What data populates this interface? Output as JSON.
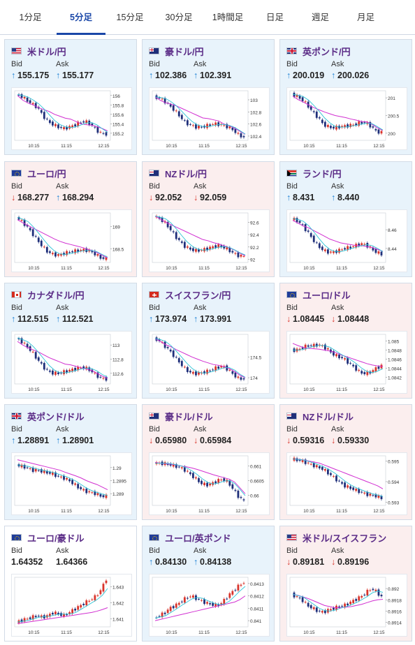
{
  "tabs": [
    {
      "label": "1分足",
      "active": false
    },
    {
      "label": "5分足",
      "active": true
    },
    {
      "label": "15分足",
      "active": false
    },
    {
      "label": "30分足",
      "active": false
    },
    {
      "label": "1時間足",
      "active": false
    },
    {
      "label": "日足",
      "active": false
    },
    {
      "label": "週足",
      "active": false
    },
    {
      "label": "月足",
      "active": false
    }
  ],
  "bid_label": "Bid",
  "ask_label": "Ask",
  "colors": {
    "up_bg": "#e8f3fb",
    "down_bg": "#fbeeee",
    "up_arrow": "#1a7fd4",
    "down_arrow": "#d9342b",
    "pair_name": "#5b2c87",
    "active_tab": "#1a47a8",
    "candle_up": "#d9342b",
    "candle_down": "#1f2f7a",
    "ma_short": "#2ec4d6",
    "ma_long": "#d12fd1"
  },
  "cards": [
    {
      "flag": "us-flag-icon",
      "pair": "米ドル/円",
      "trend": "up",
      "bid_dir": "up",
      "bid": "155.175",
      "ask_dir": "up",
      "ask": "155.177",
      "chart": {
        "yticks": [
          "156",
          "155.8",
          "155.6",
          "155.4",
          "155.2"
        ],
        "yvals": [
          156,
          155.8,
          155.6,
          155.4,
          155.2
        ],
        "xticks": [
          "10:15",
          "11:15",
          "12:15"
        ],
        "ylim": [
          155.05,
          156.1
        ],
        "path": [
          156.02,
          155.98,
          155.9,
          155.82,
          155.75,
          155.58,
          155.45,
          155.38,
          155.33,
          155.3,
          155.33,
          155.37,
          155.43,
          155.45,
          155.4,
          155.28,
          155.2,
          155.18
        ],
        "ma_long": [
          156.0,
          155.9,
          155.84,
          155.8,
          155.74,
          155.7,
          155.66,
          155.6,
          155.56,
          155.52,
          155.5,
          155.45,
          155.4,
          155.38,
          155.37,
          155.34,
          155.3,
          155.25
        ]
      }
    },
    {
      "flag": "au-flag-icon",
      "pair": "豪ドル/円",
      "trend": "up",
      "bid_dir": "up",
      "bid": "102.386",
      "ask_dir": "up",
      "ask": "102.391",
      "chart": {
        "yticks": [
          "103",
          "102.8",
          "102.6",
          "102.4"
        ],
        "yvals": [
          103,
          102.8,
          102.6,
          102.4
        ],
        "xticks": [
          "10:15",
          "11:15",
          "12:15"
        ],
        "ylim": [
          102.33,
          103.15
        ],
        "path": [
          103.05,
          103.03,
          102.98,
          102.9,
          102.82,
          102.72,
          102.62,
          102.58,
          102.55,
          102.55,
          102.57,
          102.6,
          102.6,
          102.58,
          102.55,
          102.5,
          102.42,
          102.38
        ],
        "ma_long": [
          103.05,
          102.99,
          102.95,
          102.93,
          102.9,
          102.86,
          102.82,
          102.78,
          102.74,
          102.7,
          102.69,
          102.67,
          102.65,
          102.6,
          102.57,
          102.53,
          102.48,
          102.43
        ]
      }
    },
    {
      "flag": "uk-flag-icon",
      "pair": "英ポンド/円",
      "trend": "up",
      "bid_dir": "up",
      "bid": "200.019",
      "ask_dir": "up",
      "ask": "200.026",
      "chart": {
        "yticks": [
          "201",
          "200.5",
          "200"
        ],
        "yvals": [
          201,
          200.5,
          200
        ],
        "xticks": [
          "10:15",
          "11:15",
          "12:15"
        ],
        "ylim": [
          199.8,
          201.2
        ],
        "path": [
          201.1,
          201.05,
          200.95,
          200.8,
          200.6,
          200.45,
          200.25,
          200.18,
          200.15,
          200.18,
          200.2,
          200.22,
          200.25,
          200.3,
          200.3,
          200.2,
          200.05,
          200.02
        ],
        "ma_long": [
          201.05,
          200.95,
          200.88,
          200.8,
          200.72,
          200.66,
          200.6,
          200.55,
          200.5,
          200.47,
          200.44,
          200.4,
          200.37,
          200.33,
          200.32,
          200.25,
          200.15,
          200.08
        ]
      }
    },
    {
      "flag": "eu-flag-icon",
      "pair": "ユーロ/円",
      "trend": "down",
      "bid_dir": "down",
      "bid": "168.277",
      "ask_dir": "up",
      "ask": "168.294",
      "chart": {
        "yticks": [
          "169",
          "168.5"
        ],
        "yvals": [
          169,
          168.5
        ],
        "xticks": [
          "10:15",
          "11:15",
          "12:15"
        ],
        "ylim": [
          168.2,
          169.3
        ],
        "path": [
          169.2,
          169.12,
          169.0,
          168.85,
          168.7,
          168.55,
          168.43,
          168.38,
          168.36,
          168.4,
          168.43,
          168.45,
          168.47,
          168.48,
          168.45,
          168.38,
          168.3,
          168.28
        ],
        "ma_long": [
          169.15,
          169.08,
          169.02,
          168.96,
          168.9,
          168.84,
          168.78,
          168.72,
          168.67,
          168.63,
          168.6,
          168.57,
          168.54,
          168.5,
          168.47,
          168.42,
          168.36,
          168.3
        ]
      }
    },
    {
      "flag": "nz-flag-icon",
      "pair": "NZドル/円",
      "trend": "down",
      "bid_dir": "down",
      "bid": "92.052",
      "ask_dir": "down",
      "ask": "92.059",
      "chart": {
        "yticks": [
          "92.6",
          "92.4",
          "92.2",
          "92"
        ],
        "yvals": [
          92.6,
          92.4,
          92.2,
          92
        ],
        "xticks": [
          "10:15",
          "11:15",
          "12:15"
        ],
        "ylim": [
          91.95,
          92.75
        ],
        "path": [
          92.7,
          92.66,
          92.6,
          92.5,
          92.38,
          92.28,
          92.2,
          92.16,
          92.14,
          92.15,
          92.17,
          92.2,
          92.22,
          92.2,
          92.16,
          92.1,
          92.06,
          92.05
        ],
        "ma_long": [
          92.7,
          92.65,
          92.6,
          92.56,
          92.52,
          92.48,
          92.44,
          92.4,
          92.36,
          92.32,
          92.3,
          92.27,
          92.25,
          92.22,
          92.19,
          92.15,
          92.1,
          92.06
        ]
      }
    },
    {
      "flag": "za-flag-icon",
      "pair": "ランド/円",
      "trend": "up",
      "bid_dir": "up",
      "bid": "8.431",
      "ask_dir": "up",
      "ask": "8.440",
      "chart": {
        "yticks": [
          "8.46",
          "8.44"
        ],
        "yvals": [
          8.46,
          8.44
        ],
        "xticks": [
          "10:15",
          "11:15",
          "12:15"
        ],
        "ylim": [
          8.425,
          8.478
        ],
        "path": [
          8.472,
          8.47,
          8.465,
          8.458,
          8.45,
          8.443,
          8.438,
          8.436,
          8.436,
          8.438,
          8.44,
          8.441,
          8.443,
          8.445,
          8.444,
          8.44,
          8.436,
          8.434
        ],
        "ma_long": [
          8.47,
          8.467,
          8.464,
          8.462,
          8.459,
          8.456,
          8.453,
          8.45,
          8.448,
          8.446,
          8.445,
          8.444,
          8.443,
          8.443,
          8.442,
          8.441,
          8.439,
          8.437
        ]
      }
    },
    {
      "flag": "ca-flag-icon",
      "pair": "カナダドル/円",
      "trend": "up",
      "bid_dir": "up",
      "bid": "112.515",
      "ask_dir": "up",
      "ask": "112.521",
      "chart": {
        "yticks": [
          "113",
          "112.8",
          "112.6"
        ],
        "yvals": [
          113,
          112.8,
          112.6
        ],
        "xticks": [
          "10:15",
          "11:15",
          "12:15"
        ],
        "ylim": [
          112.45,
          113.15
        ],
        "path": [
          113.1,
          113.05,
          112.98,
          112.9,
          112.8,
          112.7,
          112.63,
          112.6,
          112.6,
          112.62,
          112.64,
          112.66,
          112.68,
          112.68,
          112.64,
          112.58,
          112.53,
          112.52
        ],
        "ma_long": [
          113.05,
          113.0,
          112.96,
          112.93,
          112.9,
          112.86,
          112.82,
          112.79,
          112.76,
          112.73,
          112.72,
          112.7,
          112.68,
          112.66,
          112.64,
          112.6,
          112.56,
          112.53
        ]
      }
    },
    {
      "flag": "ch-flag-icon",
      "pair": "スイスフラン/円",
      "trend": "up",
      "bid_dir": "up",
      "bid": "173.974",
      "ask_dir": "up",
      "ask": "173.991",
      "chart": {
        "yticks": [
          "174.5",
          "174"
        ],
        "yvals": [
          174.5,
          174
        ],
        "xticks": [
          "10:15",
          "11:15",
          "12:15"
        ],
        "ylim": [
          173.85,
          175.05
        ],
        "path": [
          174.95,
          174.9,
          174.78,
          174.65,
          174.5,
          174.35,
          174.2,
          174.12,
          174.1,
          174.12,
          174.15,
          174.2,
          174.25,
          174.28,
          174.2,
          174.08,
          173.98,
          173.97
        ],
        "ma_long": [
          174.95,
          174.88,
          174.8,
          174.75,
          174.68,
          174.62,
          174.56,
          174.5,
          174.45,
          174.4,
          174.36,
          174.32,
          174.3,
          174.27,
          174.22,
          174.15,
          174.06,
          174.0
        ]
      }
    },
    {
      "flag": "eu-flag-icon",
      "pair": "ユーロ/ドル",
      "trend": "down",
      "bid_dir": "down",
      "bid": "1.08445",
      "ask_dir": "down",
      "ask": "1.08448",
      "chart": {
        "yticks": [
          "1.085",
          "1.0848",
          "1.0846",
          "1.0844",
          "1.0842"
        ],
        "yvals": [
          1.085,
          1.0848,
          1.0846,
          1.0844,
          1.0842
        ],
        "xticks": [
          "10:15",
          "11:15",
          "12:15"
        ],
        "ylim": [
          1.08405,
          1.08515
        ],
        "path": [
          1.0848,
          1.0848,
          1.08485,
          1.0849,
          1.0849,
          1.08492,
          1.08488,
          1.0848,
          1.0847,
          1.08465,
          1.0846,
          1.0845,
          1.0844,
          1.0843,
          1.08428,
          1.08432,
          1.0844,
          1.08445
        ],
        "ma_long": [
          1.08495,
          1.0849,
          1.08486,
          1.08484,
          1.08483,
          1.08482,
          1.0848,
          1.08478,
          1.08475,
          1.0847,
          1.08466,
          1.08462,
          1.08458,
          1.08454,
          1.0845,
          1.08447,
          1.08445,
          1.08444
        ]
      }
    },
    {
      "flag": "uk-flag-icon",
      "pair": "英ポンド/ドル",
      "trend": "up",
      "bid_dir": "up",
      "bid": "1.28891",
      "ask_dir": "up",
      "ask": "1.28901",
      "chart": {
        "yticks": [
          "1.29",
          "1.2895",
          "1.289"
        ],
        "yvals": [
          1.29,
          1.2895,
          1.289
        ],
        "xticks": [
          "10:15",
          "11:15",
          "12:15"
        ],
        "ylim": [
          1.28855,
          1.29045
        ],
        "path": [
          1.2901,
          1.29005,
          1.29,
          1.2899,
          1.2899,
          1.28985,
          1.2898,
          1.28975,
          1.28965,
          1.2896,
          1.2895,
          1.28935,
          1.2892,
          1.2891,
          1.28905,
          1.289,
          1.2889,
          1.2889
        ],
        "ma_long": [
          1.2903,
          1.29025,
          1.2902,
          1.29015,
          1.2901,
          1.29005,
          1.29,
          1.28995,
          1.2899,
          1.28982,
          1.28975,
          1.28968,
          1.2896,
          1.2895,
          1.28942,
          1.28935,
          1.28925,
          1.28915
        ]
      }
    },
    {
      "flag": "au-flag-icon",
      "pair": "豪ドル/ドル",
      "trend": "down",
      "bid_dir": "down",
      "bid": "0.65980",
      "ask_dir": "down",
      "ask": "0.65984",
      "chart": {
        "yticks": [
          "0.661",
          "0.6605",
          "0.66"
        ],
        "yvals": [
          0.661,
          0.6605,
          0.66
        ],
        "xticks": [
          "10:15",
          "11:15",
          "12:15"
        ],
        "ylim": [
          0.65965,
          0.66135
        ],
        "path": [
          0.6611,
          0.6611,
          0.66108,
          0.66105,
          0.661,
          0.66095,
          0.66085,
          0.6607,
          0.66055,
          0.6604,
          0.66035,
          0.6604,
          0.6605,
          0.66055,
          0.66045,
          0.6602,
          0.65995,
          0.6598
        ],
        "ma_long": [
          0.66112,
          0.6611,
          0.66108,
          0.66106,
          0.66104,
          0.661,
          0.66097,
          0.66093,
          0.66088,
          0.66082,
          0.66076,
          0.6607,
          0.66065,
          0.6606,
          0.66055,
          0.66045,
          0.66025,
          0.66005
        ]
      }
    },
    {
      "flag": "nz-flag-icon",
      "pair": "NZドル/ドル",
      "trend": "down",
      "bid_dir": "down",
      "bid": "0.59316",
      "ask_dir": "down",
      "ask": "0.59330",
      "chart": {
        "yticks": [
          "0.595",
          "0.594",
          "0.593"
        ],
        "yvals": [
          0.595,
          0.594,
          0.593
        ],
        "xticks": [
          "10:15",
          "11:15",
          "12:15"
        ],
        "ylim": [
          0.59285,
          0.59525
        ],
        "path": [
          0.5951,
          0.59505,
          0.595,
          0.5949,
          0.5948,
          0.5947,
          0.5946,
          0.5944,
          0.5942,
          0.594,
          0.5938,
          0.5937,
          0.5936,
          0.5935,
          0.5934,
          0.59335,
          0.5933,
          0.5932
        ],
        "ma_long": [
          0.5951,
          0.59508,
          0.59505,
          0.595,
          0.59495,
          0.5949,
          0.5948,
          0.5947,
          0.5946,
          0.5945,
          0.5944,
          0.5943,
          0.5942,
          0.5941,
          0.594,
          0.5939,
          0.5938,
          0.59365
        ]
      }
    },
    {
      "flag": "eu-flag-icon",
      "pair": "ユーロ/豪ドル",
      "trend": "flat",
      "bid_dir": "",
      "bid": "1.64352",
      "ask_dir": "",
      "ask": "1.64366",
      "chart": {
        "yticks": [
          "1.643",
          "1.642",
          "1.641"
        ],
        "yvals": [
          1.643,
          1.642,
          1.641
        ],
        "xticks": [
          "10:15",
          "11:15",
          "12:15"
        ],
        "ylim": [
          1.6405,
          1.6436
        ],
        "path": [
          1.6408,
          1.6409,
          1.641,
          1.6411,
          1.6412,
          1.6411,
          1.6412,
          1.6414,
          1.6413,
          1.6412,
          1.6414,
          1.6416,
          1.6418,
          1.642,
          1.6422,
          1.6424,
          1.6428,
          1.6435
        ],
        "ma_long": [
          1.6407,
          1.64075,
          1.6408,
          1.64085,
          1.6409,
          1.64095,
          1.641,
          1.64105,
          1.6411,
          1.64115,
          1.6412,
          1.64125,
          1.6413,
          1.64135,
          1.6414,
          1.64148,
          1.64158,
          1.6417
        ]
      }
    },
    {
      "flag": "eu-flag-icon",
      "pair": "ユーロ/英ポンド",
      "trend": "up",
      "bid_dir": "up",
      "bid": "0.84130",
      "ask_dir": "up",
      "ask": "0.84138",
      "chart": {
        "yticks": [
          "0.8413",
          "0.8412",
          "0.8411",
          "0.841"
        ],
        "yvals": [
          0.8413,
          0.8412,
          0.8411,
          0.841
        ],
        "xticks": [
          "10:15",
          "11:15",
          "12:15"
        ],
        "ylim": [
          0.84095,
          0.84135
        ],
        "path": [
          0.84102,
          0.84104,
          0.84106,
          0.8411,
          0.84112,
          0.84115,
          0.84118,
          0.8412,
          0.84118,
          0.84116,
          0.84114,
          0.84113,
          0.84112,
          0.84115,
          0.8412,
          0.84124,
          0.84128,
          0.84131
        ],
        "ma_long": [
          0.841,
          0.84101,
          0.84102,
          0.84103,
          0.84104,
          0.84105,
          0.84106,
          0.84107,
          0.84108,
          0.84109,
          0.8411,
          0.84111,
          0.84112,
          0.84113,
          0.84114,
          0.84115,
          0.84117,
          0.8412
        ]
      }
    },
    {
      "flag": "us-flag-icon",
      "pair": "米ドル/スイスフラン",
      "trend": "down",
      "bid_dir": "down",
      "bid": "0.89181",
      "ask_dir": "down",
      "ask": "0.89196",
      "chart": {
        "yticks": [
          "0.892",
          "0.8918",
          "0.8916",
          "0.8914"
        ],
        "yvals": [
          0.892,
          0.8918,
          0.8916,
          0.8914
        ],
        "xticks": [
          "10:15",
          "11:15",
          "12:15"
        ],
        "ylim": [
          0.89132,
          0.8922
        ],
        "path": [
          0.8919,
          0.89185,
          0.8918,
          0.8917,
          0.89165,
          0.8916,
          0.89158,
          0.89162,
          0.89165,
          0.89168,
          0.8917,
          0.89175,
          0.8918,
          0.89185,
          0.89192,
          0.892,
          0.89195,
          0.89185
        ],
        "ma_long": [
          0.8919,
          0.89188,
          0.89185,
          0.89182,
          0.89178,
          0.89174,
          0.8917,
          0.89168,
          0.89166,
          0.89166,
          0.89167,
          0.89168,
          0.8917,
          0.89172,
          0.89175,
          0.89178,
          0.8918,
          0.89181
        ]
      }
    }
  ]
}
